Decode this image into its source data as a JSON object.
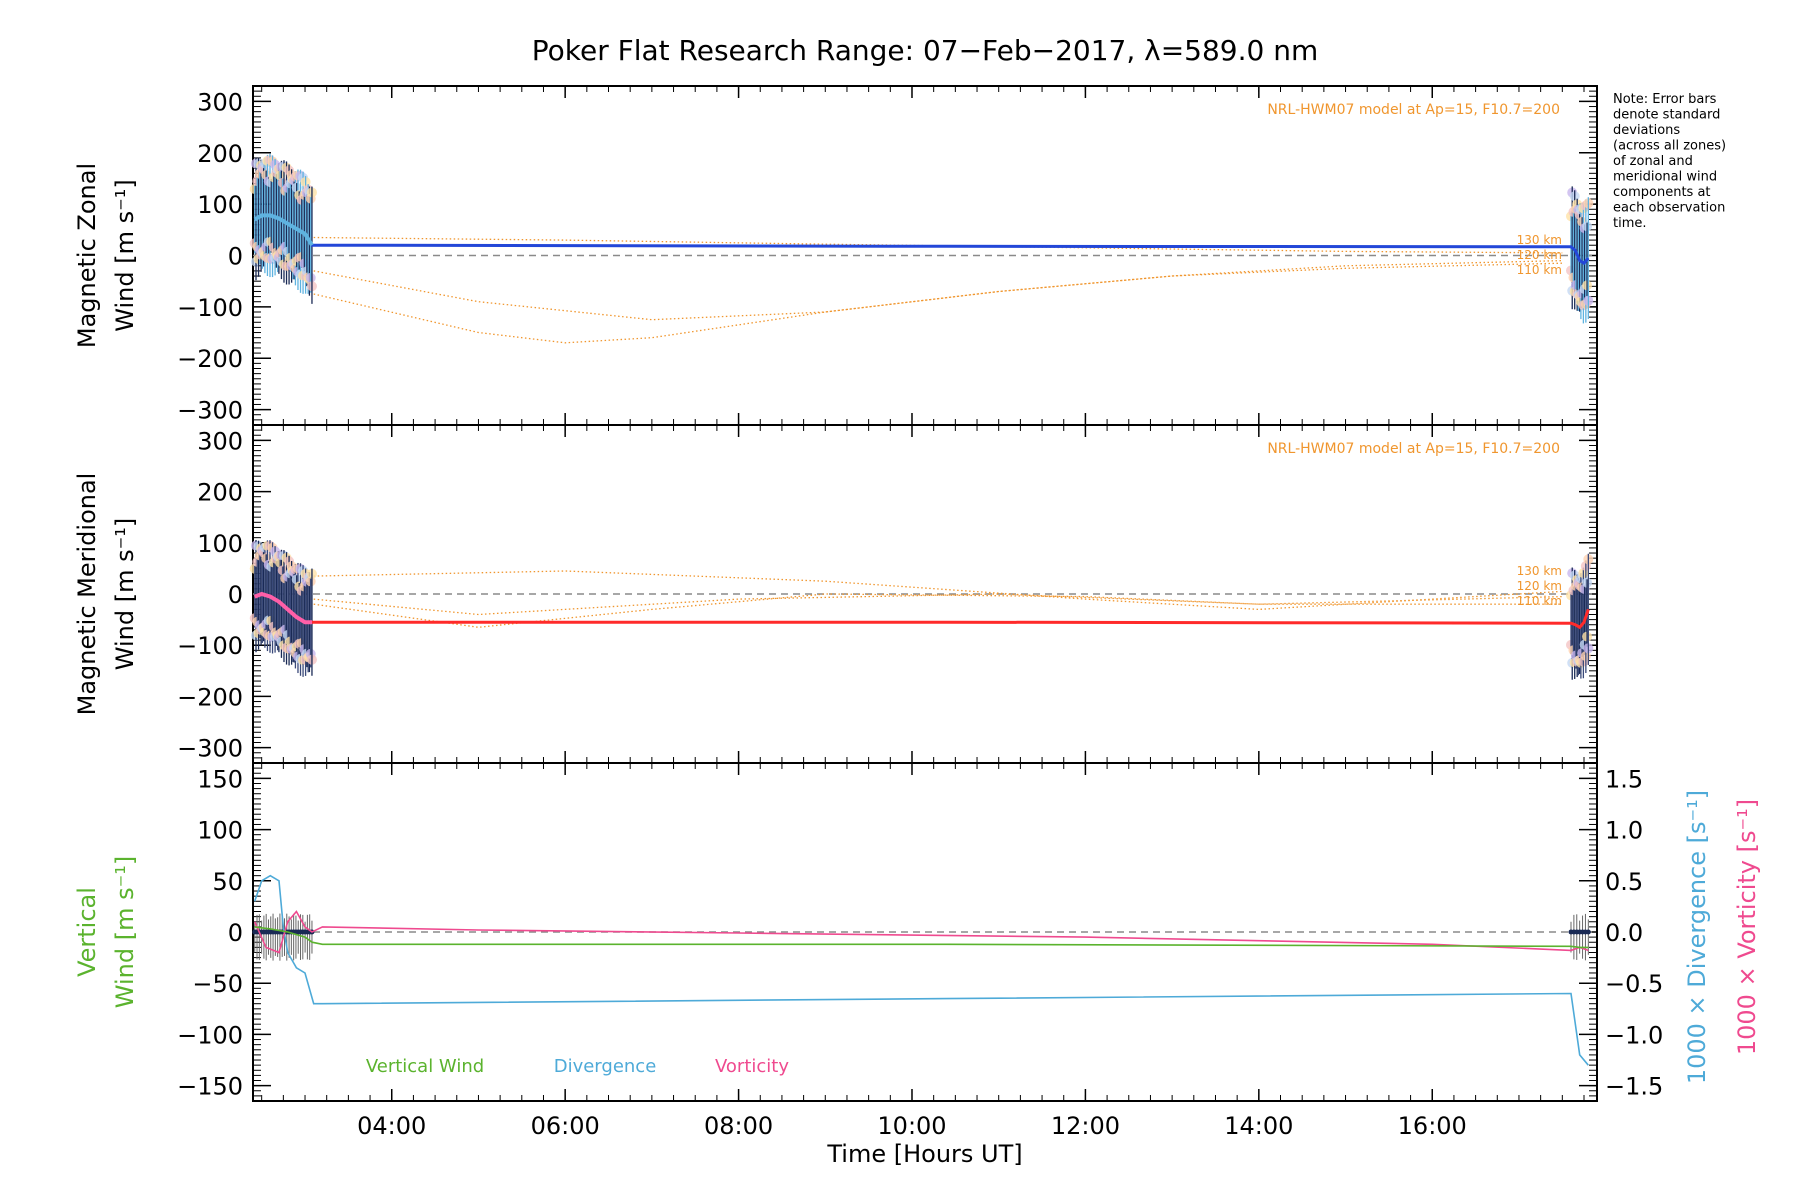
{
  "title": "Poker Flat Research Range: 07−Feb−2017, λ=589.0 nm",
  "note_lines": [
    "Note: Error bars",
    "denote standard",
    "deviations",
    "(across all zones)",
    "of zonal and",
    "meridional wind",
    "components at",
    "each observation",
    "time."
  ],
  "x_axis": {
    "label": "Time [Hours UT]",
    "ticks": [
      4,
      6,
      8,
      10,
      12,
      14,
      16
    ],
    "tick_labels": [
      "04:00",
      "06:00",
      "08:00",
      "10:00",
      "12:00",
      "14:00",
      "16:00"
    ],
    "range": [
      2.4,
      17.9
    ]
  },
  "colors": {
    "model": "#f0962e",
    "zonal": "#2347d8",
    "zonal_err": "#5fb3e0",
    "meridional": "#ff2a2a",
    "vertical": "#5bb32e",
    "divergence": "#4eaad8",
    "vorticity": "#ef4a8f",
    "dashed": "#8a8a8a"
  },
  "chart_data": [
    {
      "type": "line",
      "panel": "zonal",
      "ylabel_line1": "Magnetic Zonal",
      "ylabel_line2": "Wind [m s⁻¹]",
      "ylim": [
        -330,
        330
      ],
      "yticks": [
        -300,
        -200,
        -100,
        0,
        100,
        200,
        300
      ],
      "ytick_labels": [
        "−300",
        "−200",
        "−100",
        "0",
        "100",
        "200",
        "300"
      ],
      "model_label": "NRL-HWM07 model at Ap=15, F10.7=200",
      "model_alt_labels": [
        "130 km",
        "120 km",
        "110 km"
      ],
      "series": [
        {
          "role": "mean",
          "x": [
            2.42,
            2.5,
            2.6,
            2.7,
            2.8,
            2.9,
            3.0,
            3.08,
            3.2,
            10.4,
            17.6,
            17.65,
            17.7,
            17.75,
            17.8
          ],
          "y": [
            70,
            78,
            78,
            72,
            62,
            52,
            42,
            20,
            20,
            18,
            17,
            10,
            -10,
            -15,
            -5
          ]
        },
        {
          "role": "model",
          "x": [
            3.1,
            6.0,
            9.0,
            12.0,
            15.0,
            17.5
          ],
          "y": [
            35,
            30,
            22,
            15,
            8,
            5
          ]
        },
        {
          "role": "model",
          "x": [
            3.1,
            5.0,
            7.0,
            9.0,
            11.0,
            13.0,
            15.0,
            17.5
          ],
          "y": [
            -30,
            -90,
            -125,
            -110,
            -70,
            -40,
            -20,
            -10
          ]
        },
        {
          "role": "model",
          "x": [
            3.1,
            5.0,
            6.0,
            7.0,
            9.0,
            11.0,
            13.0,
            15.0,
            17.5
          ],
          "y": [
            -75,
            -150,
            -170,
            -160,
            -110,
            -70,
            -40,
            -25,
            -15
          ]
        }
      ],
      "error_bar_sd": 120
    },
    {
      "type": "line",
      "panel": "meridional",
      "ylabel_line1": "Magnetic Meridional",
      "ylabel_line2": "Wind [m s⁻¹]",
      "ylim": [
        -330,
        330
      ],
      "yticks": [
        -300,
        -200,
        -100,
        0,
        100,
        200,
        300
      ],
      "ytick_labels": [
        "−300",
        "−200",
        "−100",
        "0",
        "100",
        "200",
        "300"
      ],
      "model_label": "NRL-HWM07 model at Ap=15, F10.7=200",
      "model_alt_labels": [
        "130 km",
        "120 km",
        "110 km"
      ],
      "series": [
        {
          "role": "mean",
          "x": [
            2.42,
            2.5,
            2.6,
            2.7,
            2.8,
            2.9,
            3.0,
            3.08,
            3.2,
            10.4,
            17.6,
            17.65,
            17.7,
            17.75,
            17.8
          ],
          "y": [
            -5,
            0,
            -5,
            -15,
            -30,
            -45,
            -55,
            -55,
            -55,
            -55,
            -57,
            -60,
            -65,
            -55,
            -30
          ]
        },
        {
          "role": "model",
          "x": [
            3.1,
            6.0,
            9.0,
            12.0,
            14.0,
            17.5
          ],
          "y": [
            35,
            45,
            25,
            -10,
            -30,
            5
          ]
        },
        {
          "role": "model",
          "x": [
            3.1,
            5.0,
            8.0,
            11.0,
            14.0,
            17.5
          ],
          "y": [
            -10,
            -40,
            -10,
            0,
            -20,
            -5
          ]
        },
        {
          "role": "model",
          "x": [
            3.1,
            5.0,
            7.0,
            9.0,
            12.0,
            14.0,
            17.5
          ],
          "y": [
            -20,
            -65,
            -30,
            0,
            -5,
            -20,
            -20
          ]
        }
      ],
      "error_bar_sd": 110
    },
    {
      "type": "line",
      "panel": "vertical",
      "ylabel_line1": "Vertical",
      "ylabel_line2": "Wind [m s⁻¹]",
      "ylim": [
        -165,
        165
      ],
      "yticks": [
        -150,
        -100,
        -50,
        0,
        50,
        100,
        150
      ],
      "ytick_labels": [
        "−150",
        "−100",
        "−50",
        "0",
        "50",
        "100",
        "150"
      ],
      "y2lim": [
        -1.65,
        1.65
      ],
      "y2ticks": [
        -1.5,
        -1.0,
        -0.5,
        0.0,
        0.5,
        1.0,
        1.5
      ],
      "y2tick_labels": [
        "−1.5",
        "−1.0",
        "−0.5",
        "0.0",
        "0.5",
        "1.0",
        "1.5"
      ],
      "y2label_divergence": "1000 × Divergence [s⁻¹]",
      "y2label_vorticity": "1000 × Vorticity [s⁻¹]",
      "legend": [
        "Vertical Wind",
        "Divergence",
        "Vorticity"
      ],
      "series": [
        {
          "name": "Vertical Wind",
          "x": [
            2.42,
            2.6,
            2.8,
            3.0,
            3.08,
            3.2,
            10.4,
            17.6,
            17.7,
            17.8
          ],
          "y": [
            5,
            3,
            0,
            -5,
            -10,
            -12,
            -12,
            -14,
            -15,
            -15
          ]
        },
        {
          "name": "Divergence",
          "x": [
            2.42,
            2.5,
            2.6,
            2.7,
            2.75,
            2.8,
            2.9,
            3.0,
            3.1,
            3.2,
            10.4,
            17.6,
            17.7,
            17.8
          ],
          "y": [
            0.3,
            0.5,
            0.55,
            0.5,
            0.05,
            -0.2,
            -0.35,
            -0.4,
            -0.7,
            -0.7,
            -0.65,
            -0.6,
            -1.2,
            -1.3
          ]
        },
        {
          "name": "Vorticity",
          "x": [
            2.42,
            2.55,
            2.7,
            2.8,
            2.9,
            3.0,
            3.08,
            3.2,
            5.0,
            8.0,
            12.0,
            16.0,
            17.6,
            17.7,
            17.8
          ],
          "y": [
            0.1,
            -0.15,
            -0.2,
            0.1,
            0.2,
            0.05,
            0.0,
            0.05,
            0.02,
            -0.01,
            -0.05,
            -0.12,
            -0.18,
            -0.15,
            -0.18
          ]
        }
      ]
    }
  ]
}
